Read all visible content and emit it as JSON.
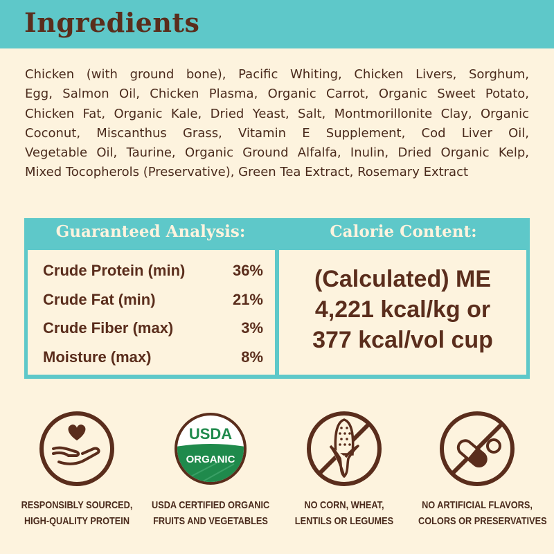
{
  "header": {
    "title": "Ingredients"
  },
  "ingredients": {
    "lines": [
      "Chicken (with ground bone), Pacific Whiting, Chicken Livers, Sorghum,",
      "Egg, Salmon Oil, Chicken Plasma, Organic Carrot, Organic Sweet Potato,",
      "Chicken Fat, Organic Kale, Dried Yeast, Salt, Montmorillonite Clay, Organic",
      "Coconut, Miscanthus Grass, Vitamin E Supplement, Cod Liver Oil,",
      "Vegetable Oil, Taurine, Organic Ground Alfalfa, Inulin, Dried Organic Kelp,",
      "Mixed Tocopherols (Preservative), Green Tea Extract, Rosemary Extract"
    ]
  },
  "analysis": {
    "heading": "Guaranteed Analysis:",
    "rows": [
      {
        "label": "Crude Protein (min)",
        "value": "36%"
      },
      {
        "label": "Crude Fat (min)",
        "value": "21%"
      },
      {
        "label": "Crude Fiber (max)",
        "value": "3%"
      },
      {
        "label": "Moisture (max)",
        "value": "8%"
      }
    ]
  },
  "calorie": {
    "heading": "Calorie Content:",
    "lines": [
      "(Calculated) ME",
      "4,221 kcal/kg or",
      "377 kcal/vol cup"
    ]
  },
  "badges": [
    {
      "icon": "hand-heart-icon",
      "line1": "RESPONSIBLY SOURCED,",
      "line2": "HIGH-QUALITY PROTEIN"
    },
    {
      "icon": "usda-organic-seal",
      "line1": "USDA CERTIFIED ORGANIC",
      "line2": "FRUITS AND VEGETABLES",
      "seal_top": "USDA",
      "seal_bottom": "ORGANIC"
    },
    {
      "icon": "no-corn-icon",
      "line1": "NO CORN, WHEAT,",
      "line2": "LENTILS OR LEGUMES"
    },
    {
      "icon": "no-pills-icon",
      "line1": "NO ARTIFICIAL FLAVORS,",
      "line2": "COLORS OR PRESERVATIVES"
    }
  ],
  "colors": {
    "teal": "#5ec8c9",
    "cream": "#fdf3de",
    "brown": "#5a2d1c",
    "usda_green": "#1f8a4c"
  }
}
